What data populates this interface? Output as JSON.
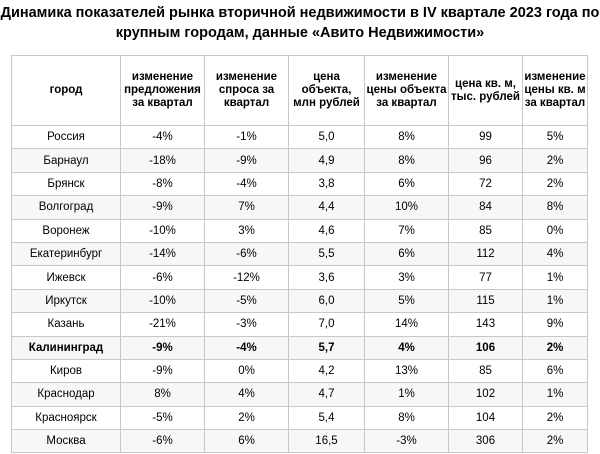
{
  "title": "Динамика показателей рынка вторичной недвижимости в IV квартале 2023 года по крупным городам, данные «Авито Недвижимости»",
  "headers": [
    "город",
    "изменение предложения за квартал",
    "изменение спроса за квартал",
    "цена объекта, млн рублей",
    "изменение цены объекта за квартал",
    "цена кв. м, тыс. рублей",
    "изменение цены кв. м за квартал"
  ],
  "rows": [
    [
      "Россия",
      "-4%",
      "-1%",
      "5,0",
      "8%",
      "99",
      "5%"
    ],
    [
      "Барнаул",
      "-18%",
      "-9%",
      "4,9",
      "8%",
      "96",
      "2%"
    ],
    [
      "Брянск",
      "-8%",
      "-4%",
      "3,8",
      "6%",
      "72",
      "2%"
    ],
    [
      "Волгоград",
      "-9%",
      "7%",
      "4,4",
      "10%",
      "84",
      "8%"
    ],
    [
      "Воронеж",
      "-10%",
      "3%",
      "4,6",
      "7%",
      "85",
      "0%"
    ],
    [
      "Екатеринбург",
      "-14%",
      "-6%",
      "5,5",
      "6%",
      "112",
      "4%"
    ],
    [
      "Ижевск",
      "-6%",
      "-12%",
      "3,6",
      "3%",
      "77",
      "1%"
    ],
    [
      "Иркутск",
      "-10%",
      "-5%",
      "6,0",
      "5%",
      "115",
      "1%"
    ],
    [
      "Казань",
      "-21%",
      "-3%",
      "7,0",
      "14%",
      "143",
      "9%"
    ],
    [
      "Калининград",
      "-9%",
      "-4%",
      "5,7",
      "4%",
      "106",
      "2%"
    ],
    [
      "Киров",
      "-9%",
      "0%",
      "4,2",
      "13%",
      "85",
      "6%"
    ],
    [
      "Краснодар",
      "8%",
      "4%",
      "4,7",
      "1%",
      "102",
      "1%"
    ],
    [
      "Красноярск",
      "-5%",
      "2%",
      "5,4",
      "8%",
      "104",
      "2%"
    ],
    [
      "Москва",
      "-6%",
      "6%",
      "16,5",
      "-3%",
      "306",
      "2%"
    ]
  ],
  "highlighted_row": "Калининград"
}
